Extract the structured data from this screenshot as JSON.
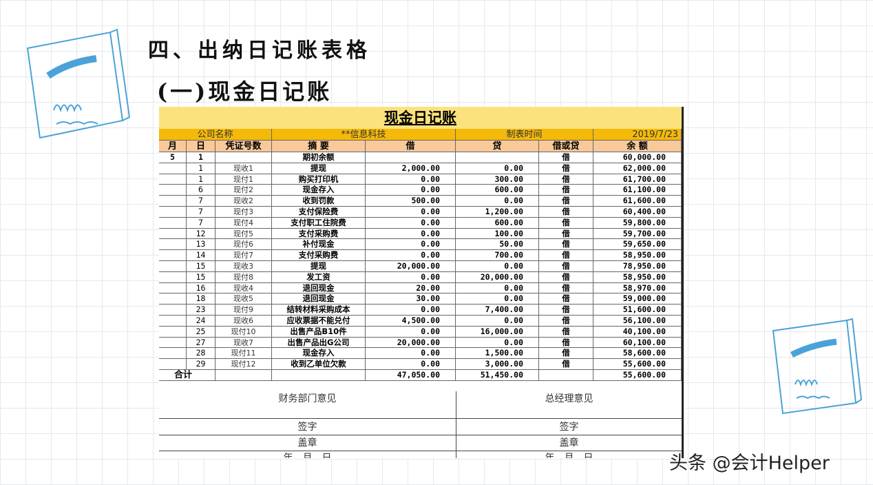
{
  "heading": "四、出纳日记账表格",
  "subheading": "(一)现金日记账",
  "sheet": {
    "title": "现金日记账",
    "company_label": "公司名称",
    "company_value": "**信息科技",
    "date_label": "制表时间",
    "date_value": "2019/7/23",
    "columns": [
      "月",
      "日",
      "凭证号数",
      "摘  要",
      "借",
      "贷",
      "借或贷",
      "余  额"
    ],
    "rows": [
      {
        "m": "5",
        "d": "1",
        "v": "",
        "s": "期初余额",
        "dr": "",
        "cr": "",
        "dir": "借",
        "bal": "60,000.00"
      },
      {
        "m": "",
        "d": "1",
        "v": "现收1",
        "s": "提现",
        "dr": "2,000.00",
        "cr": "0.00",
        "dir": "借",
        "bal": "62,000.00"
      },
      {
        "m": "",
        "d": "1",
        "v": "现付1",
        "s": "购买打印机",
        "dr": "0.00",
        "cr": "300.00",
        "dir": "借",
        "bal": "61,700.00"
      },
      {
        "m": "",
        "d": "6",
        "v": "现付2",
        "s": "现金存入",
        "dr": "0.00",
        "cr": "600.00",
        "dir": "借",
        "bal": "61,100.00"
      },
      {
        "m": "",
        "d": "7",
        "v": "现收2",
        "s": "收到罚款",
        "dr": "500.00",
        "cr": "0.00",
        "dir": "借",
        "bal": "61,600.00"
      },
      {
        "m": "",
        "d": "7",
        "v": "现付3",
        "s": "支付保险费",
        "dr": "0.00",
        "cr": "1,200.00",
        "dir": "借",
        "bal": "60,400.00"
      },
      {
        "m": "",
        "d": "7",
        "v": "现付4",
        "s": "支付职工住院费",
        "dr": "0.00",
        "cr": "600.00",
        "dir": "借",
        "bal": "59,800.00"
      },
      {
        "m": "",
        "d": "12",
        "v": "现付5",
        "s": "支付采购费",
        "dr": "0.00",
        "cr": "100.00",
        "dir": "借",
        "bal": "59,700.00"
      },
      {
        "m": "",
        "d": "13",
        "v": "现付6",
        "s": "补付现金",
        "dr": "0.00",
        "cr": "50.00",
        "dir": "借",
        "bal": "59,650.00"
      },
      {
        "m": "",
        "d": "14",
        "v": "现付7",
        "s": "支付采购费",
        "dr": "0.00",
        "cr": "700.00",
        "dir": "借",
        "bal": "58,950.00"
      },
      {
        "m": "",
        "d": "15",
        "v": "现收3",
        "s": "提现",
        "dr": "20,000.00",
        "cr": "0.00",
        "dir": "借",
        "bal": "78,950.00"
      },
      {
        "m": "",
        "d": "15",
        "v": "现付8",
        "s": "发工资",
        "dr": "0.00",
        "cr": "20,000.00",
        "dir": "借",
        "bal": "58,950.00"
      },
      {
        "m": "",
        "d": "16",
        "v": "现收4",
        "s": "退回现金",
        "dr": "20.00",
        "cr": "0.00",
        "dir": "借",
        "bal": "58,970.00"
      },
      {
        "m": "",
        "d": "18",
        "v": "现收5",
        "s": "退回现金",
        "dr": "30.00",
        "cr": "0.00",
        "dir": "借",
        "bal": "59,000.00"
      },
      {
        "m": "",
        "d": "23",
        "v": "现付9",
        "s": "结转材料采购成本",
        "dr": "0.00",
        "cr": "7,400.00",
        "dir": "借",
        "bal": "51,600.00"
      },
      {
        "m": "",
        "d": "24",
        "v": "现收6",
        "s": "应收票据不能兑付",
        "dr": "4,500.00",
        "cr": "0.00",
        "dir": "借",
        "bal": "56,100.00"
      },
      {
        "m": "",
        "d": "25",
        "v": "现付10",
        "s": "出售产品B10件",
        "dr": "0.00",
        "cr": "16,000.00",
        "dir": "借",
        "bal": "40,100.00"
      },
      {
        "m": "",
        "d": "27",
        "v": "现收7",
        "s": "出售产品出G公司",
        "dr": "20,000.00",
        "cr": "0.00",
        "dir": "借",
        "bal": "60,100.00"
      },
      {
        "m": "",
        "d": "28",
        "v": "现付11",
        "s": "现金存入",
        "dr": "0.00",
        "cr": "1,500.00",
        "dir": "借",
        "bal": "58,600.00"
      },
      {
        "m": "",
        "d": "29",
        "v": "现付12",
        "s": "收到乙单位欠款",
        "dr": "0.00",
        "cr": "3,000.00",
        "dir": "借",
        "bal": "55,600.00"
      }
    ],
    "total": {
      "label": "合计",
      "dr": "47,050.00",
      "cr": "51,450.00",
      "bal": "55,600.00"
    },
    "footer": {
      "finance_opinion": "财务部门意见",
      "gm_opinion": "总经理意见",
      "sign": "签字",
      "seal": "盖章",
      "date": "年　月　日"
    }
  },
  "watermark": "头条 @会计Helper",
  "colors": {
    "title_bg": "#FBE27C",
    "company_row_bg": "#F5B90A",
    "header_row_bg": "#F9C99A",
    "doodle": "#4aa3d8"
  }
}
